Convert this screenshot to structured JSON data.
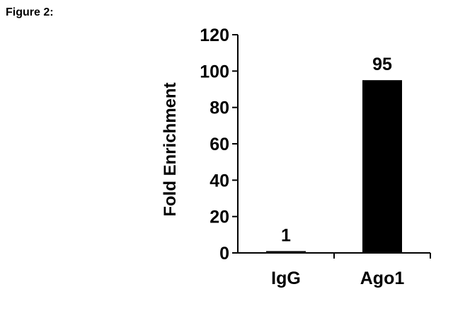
{
  "figure_label": "Figure 2:",
  "chart_data": {
    "type": "bar",
    "categories": [
      "IgG",
      "Ago1"
    ],
    "values": [
      1,
      95
    ],
    "data_labels": [
      "1",
      "95"
    ],
    "title": "",
    "xlabel": "",
    "ylabel": "Fold Enrichment",
    "ylim": [
      0,
      120
    ],
    "yticks": [
      0,
      20,
      40,
      60,
      80,
      100,
      120
    ],
    "ytick_labels": [
      "0",
      "20",
      "40",
      "60",
      "80",
      "100",
      "120"
    ],
    "grid": false,
    "legend": "none",
    "bar_color": "#000000"
  }
}
